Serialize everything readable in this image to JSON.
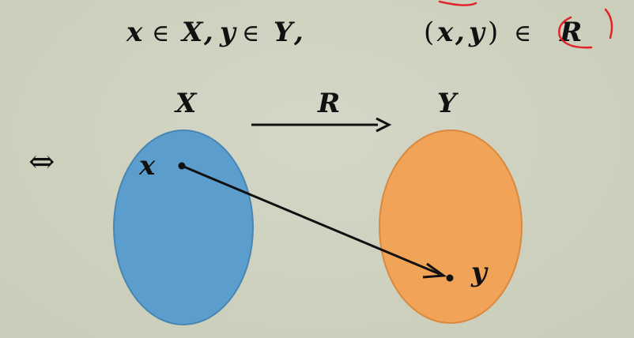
{
  "formula": {
    "membership": {
      "x": "x",
      "in1": "∈",
      "X": "X",
      "comma1": ",",
      "y": "y",
      "in2": "∈",
      "Y": "Y",
      "comma2": ","
    },
    "pair": {
      "open": "(",
      "x": "x",
      "comma": ",",
      "y": "y",
      "close": ")",
      "in": "∈",
      "R": "R"
    }
  },
  "equivalence_symbol": "⇔",
  "diagram": {
    "set_X_label": "X",
    "relation_label": "R",
    "set_Y_label": "Y",
    "point_x_label": "x",
    "point_y_label": "y",
    "colors": {
      "set_X_fill": "#5b9dcc",
      "set_X_stroke": "#4a86b4",
      "set_Y_fill": "#f1a358",
      "set_Y_stroke": "#d98a40",
      "annotation": "#e0242a"
    }
  }
}
